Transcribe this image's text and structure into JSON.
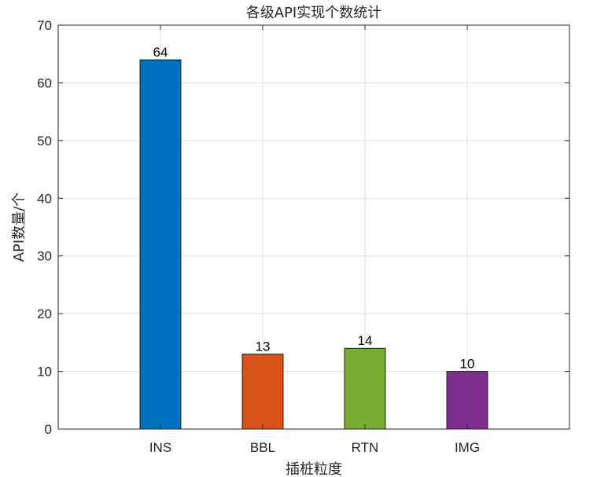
{
  "chart_data": {
    "type": "bar",
    "title": "各级API实现个数统计",
    "xlabel": "插桩粒度",
    "ylabel": "API数量/个",
    "categories": [
      "INS",
      "BBL",
      "RTN",
      "IMG"
    ],
    "values": [
      64,
      13,
      14,
      10
    ],
    "data_labels": [
      "64",
      "13",
      "14",
      "10"
    ],
    "colors": [
      "#0072BD",
      "#D95319",
      "#77AC30",
      "#7E2F8E"
    ],
    "ylim": [
      0,
      70
    ],
    "yticks": [
      0,
      10,
      20,
      30,
      40,
      50,
      60,
      70
    ],
    "ytick_labels": [
      "0",
      "10",
      "20",
      "30",
      "40",
      "50",
      "60",
      "70"
    ],
    "grid": true,
    "box": true
  }
}
